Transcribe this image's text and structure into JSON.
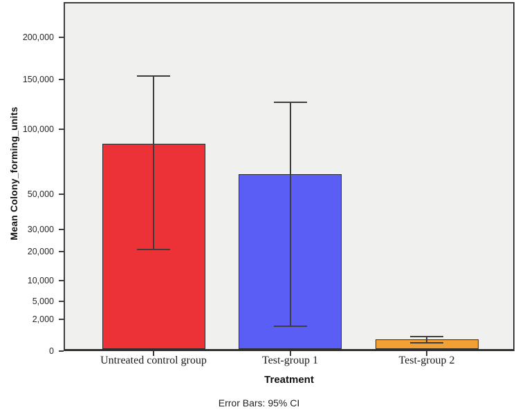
{
  "figure": {
    "background": "#ffffff",
    "plot_background": "#f0f0ee",
    "frame_color": "#3c3c3c",
    "error_bar_color": "#3d3d3d",
    "bar_outline_color": "#2e2e2e"
  },
  "chart_data": {
    "type": "bar",
    "title": "",
    "xlabel": "Treatment",
    "ylabel": "Mean Colony_forming_units",
    "caption": "Error Bars: 95% CI",
    "scale": "sqrt",
    "ylim": [
      0,
      247500
    ],
    "grid": false,
    "legend": "none",
    "categories": [
      "Untreated control group",
      "Test-group 1",
      "Test-group 2"
    ],
    "series": [
      {
        "name": "Mean Colony_forming_units",
        "values": [
          87000,
          63500,
          270
        ]
      }
    ],
    "error_bars": {
      "type": "95% CI",
      "low": [
        21000,
        1200,
        130
      ],
      "high": [
        154000,
        126000,
        390
      ]
    },
    "bar_colors": [
      "#ed3237",
      "#5a5ef5",
      "#f2a034"
    ],
    "yticks": [
      {
        "value": 0,
        "label": "0"
      },
      {
        "value": 2000,
        "label": "2,000"
      },
      {
        "value": 5000,
        "label": "5,000"
      },
      {
        "value": 10000,
        "label": "10,000"
      },
      {
        "value": 20000,
        "label": "20,000"
      },
      {
        "value": 30000,
        "label": "30,000"
      },
      {
        "value": 50000,
        "label": "50,000"
      },
      {
        "value": 100000,
        "label": "100,000"
      },
      {
        "value": 150000,
        "label": "150,000"
      },
      {
        "value": 200000,
        "label": "200,000"
      }
    ]
  }
}
